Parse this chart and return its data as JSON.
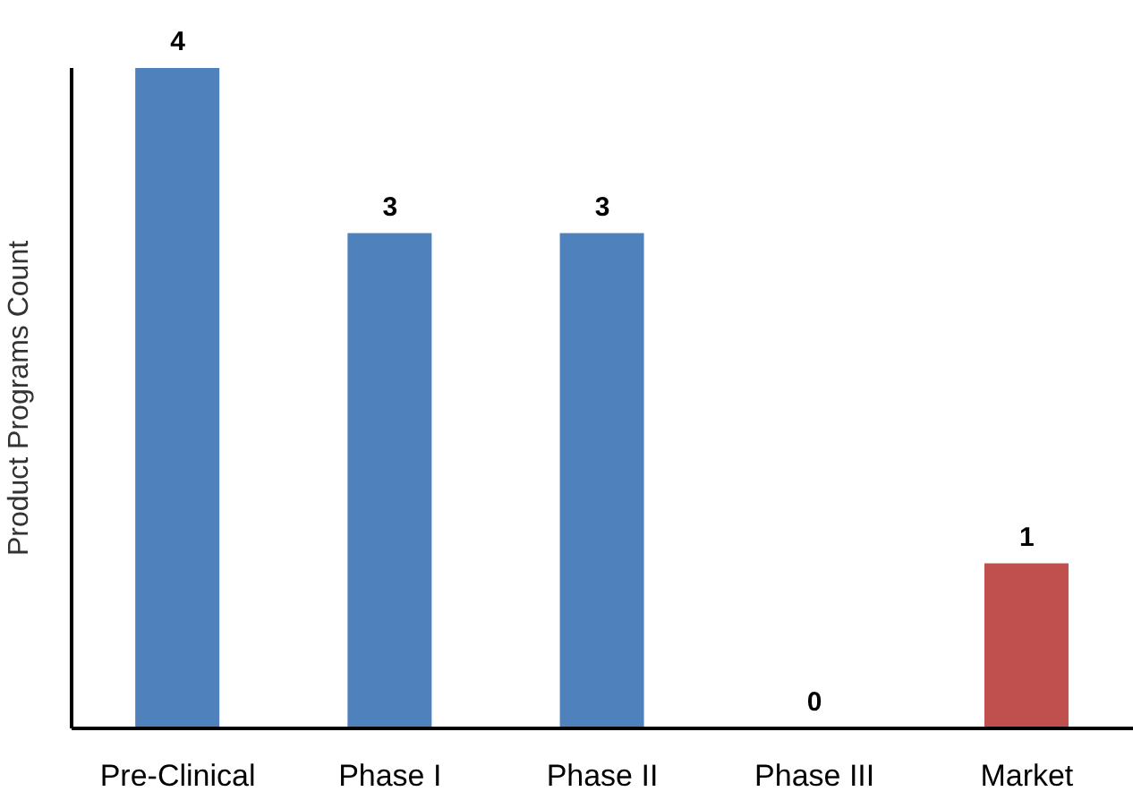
{
  "chart_data": {
    "type": "bar",
    "ylabel": "Product Programs Count",
    "categories": [
      "Pre-Clinical",
      "Phase I",
      "Phase II",
      "Phase III",
      "Market"
    ],
    "values": [
      4,
      3,
      3,
      0,
      1
    ],
    "colors": [
      "#4f81bd",
      "#4f81bd",
      "#4f81bd",
      "#4f81bd",
      "#c0504d"
    ],
    "data_labels": true,
    "grid": false,
    "legend": false
  }
}
